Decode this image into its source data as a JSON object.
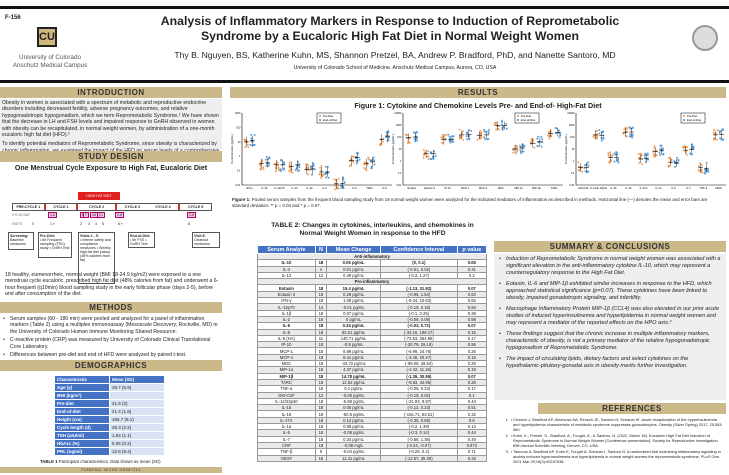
{
  "header": {
    "poster_id": "F-156",
    "title_line1": "Analysis of Inflammatory Markers in Response to Induction of Reprometabolic",
    "title_line2": "Syndrome by a Eucaloric High Fat Diet in Normal Weight Women",
    "authors": "Thy B. Nguyen, BS, Katherine Kuhn, MS, Shannon Pretzel, BA, Andrew P. Bradford, PhD, and Nanette Santoro, MD",
    "affiliation": "University of Colorado School of Medicine, Anschutz Medical Campus, Aurora, CO, USA",
    "logo_line1": "University of Colorado",
    "logo_line2": "Anschutz Medical Campus"
  },
  "intro": {
    "heading": "INTRODUCTION",
    "p1": "Obesity in women is associated with a spectrum of metabolic and reproductive endocrine disorders including decreased fertility, adverse pregnancy outcomes, and relative hypogonadotropic hypogonadism, which we term Reprometabolic Syndrome.¹ We have shown that the decrease in LH and FSH levels and impaired response to GnRH observed in women with obesity can be recapitulated, in normal weight women, by administration of a one-month eucaloric high fat diet (HFD).²",
    "p2": "To identify potential mediators of Reprometabolic Syndrome, since obesity is characterized by chronic inflammation, we examined the impact of the HFD on serum levels of a comprehensive panel of inflammatory markers and adipocytokines.³"
  },
  "design": {
    "heading": "STUDY DESIGN",
    "title": "One Menstrual Cycle Exposure to High Fat, Eucaloric Diet",
    "hfd_label": "HIGH FAT DIET",
    "cycles": [
      "PRE-CYCLE 1",
      "CYCLE 1",
      "CYCLE 2",
      "CYCLE 3",
      "CYCLE 4",
      "CYCLE 5"
    ],
    "cycle_day_label": "CYCLE DAY",
    "visits_label": "VISITS",
    "days": [
      "2-6",
      "8",
      "7",
      "16",
      "21",
      "2-6",
      "2-6"
    ],
    "visits": [
      "0",
      "1 †",
      "2",
      "3",
      "4",
      "5",
      "6 †",
      "8"
    ],
    "boxes": [
      {
        "title": "Screening:",
        "body": "Baseline measures"
      },
      {
        "title": "Pre-Diet:",
        "body": "• 6h Frequent sampling (FSS) study • GnRH Test"
      },
      {
        "title": "Visits 2 - 5:",
        "body": "• Interim safety and compliance measures • Weekly high-fat diet pickup (48% calories from fat)"
      },
      {
        "title": "End-of-Diet:",
        "body": "• 6h FSS • GnRH Test"
      },
      {
        "title": "Visit 8:",
        "body": "Cleanout measures"
      }
    ],
    "text": "18 healthy, eumenorrheic, normal weight (BMI 18-24.9 kg/m2) were exposed to a one menstrual cycle eucaloric, prescribed high fat diet (48% calories from fat) and underwent a 6-hour frequent (q10min) blood sampling study in the early follicular phase (days 2-5), before and after consumption of the diet."
  },
  "methods": {
    "heading": "METHODS",
    "bullets": [
      "Serum samples (60 - 180 min) were pooled and analyzed for a panel of inflammation markers (Table 2) using a multiplex immunoassay (Mesoscale Discovery, Rockville, MD) in the University of Colorado Human Immune Monitoring Shared Resource.",
      "C-reactive protein (CRP) was measured by University of Colorado Clinical Translational Core Laboratory.",
      "Differences between pre-diet and end of HFD were analyzed by paired t-test."
    ]
  },
  "demographics": {
    "heading": "DEMOGRAPHICS",
    "col1": "Characteristic",
    "col2": "Mean (SD)",
    "rows": [
      [
        "Age (y)",
        "29.7 (5.9)"
      ],
      [
        "BMI (kg/m²)",
        ""
      ],
      [
        "Pre-diet",
        "21.6 (2)"
      ],
      [
        "End-of-diet",
        "21.4 (1.8)"
      ],
      [
        "Height (cm)",
        "166.7 (9.1)"
      ],
      [
        "Cycle length (d)",
        "28.3 (2.2)"
      ],
      [
        "TSH (uIU/ml)",
        "1.84 (1.1)"
      ],
      [
        "HbA1c (%)",
        "5.05 (0.2)"
      ],
      [
        "PRL (ng/ml)",
        "12.6 (6.4)"
      ]
    ],
    "caption_bold": "TABLE 1",
    "caption": "Participant characteristics.  Data shown as mean (SD)",
    "funding": "FUNDING: NICHD HD087314"
  },
  "results": {
    "heading": "RESULTS",
    "figure_title": "Figure 1: Cytokine and Chemokine Levels Pre- and End-of- High-Fat Diet",
    "legend": [
      "Pre-Diet",
      "End-of-Diet"
    ],
    "ylabel": "Concentration (pg/mL)",
    "caption_bold": "Figure 1:",
    "caption": "Pooled serum samples from the frequent blood sampling study from 18 normal weight women were analyzed for the indicated mediators of inflammation as described in methods. Horizontal line (—) denotes the mean and error bars are standard deviation. ** p = 0.04 and * p = 0.07."
  },
  "chart_data": [
    {
      "type": "scatter",
      "ylabel": "Concentration (pg/mL)",
      "yscale": "log",
      "ylim": [
        0.01,
        1000
      ],
      "categories": [
        "IFN-γ",
        "IL-10",
        "IL-12p70",
        "IL-13",
        "IL-1β",
        "IL-2",
        "IL-4",
        "IL-6",
        "TNFα",
        "IL-8"
      ],
      "series": [
        {
          "name": "Pre-Diet",
          "values": [
            10,
            0.3,
            0.25,
            0.2,
            0.12,
            0.08,
            0.012,
            0.5,
            0.3,
            15
          ]
        },
        {
          "name": "End-of-Diet",
          "values": [
            12,
            0.35,
            0.25,
            0.25,
            0.13,
            0.08,
            0.013,
            0.8,
            0.4,
            25
          ]
        }
      ]
    },
    {
      "type": "scatter",
      "ylabel": "Concentration (pg/mL)",
      "yscale": "log",
      "ylim": [
        0.01,
        10000
      ],
      "categories": [
        "Eotaxin",
        "Eotaxin-3",
        "IP-10",
        "MCP-1",
        "MCP-4",
        "MDC",
        "MIP-1α",
        "MIP-1β",
        "TARC"
      ],
      "series": [
        {
          "name": "Pre-Diet",
          "values": [
            90,
            4,
            60,
            150,
            140,
            900,
            10,
            30,
            200
          ]
        },
        {
          "name": "End-of-Diet",
          "values": [
            100,
            4,
            60,
            160,
            150,
            870,
            12,
            40,
            230
          ]
        }
      ]
    },
    {
      "type": "scatter",
      "ylabel": "Concentration (pg/mL)",
      "yscale": "log",
      "ylim": [
        0.01,
        10000
      ],
      "categories": [
        "GM-CSF",
        "IL-12/IL-23p40",
        "IL-15",
        "IL-16",
        "IL-17A",
        "IL-1α",
        "IL-5",
        "IL-7",
        "TNF-β",
        "VEGF"
      ],
      "series": [
        {
          "name": "Pre-Diet",
          "values": [
            0.3,
            150,
            2,
            250,
            1.5,
            6,
            0.8,
            8,
            0.3,
            150
          ]
        },
        {
          "name": "End-of-Diet",
          "values": [
            0.3,
            140,
            2,
            260,
            1.7,
            7,
            0.7,
            9,
            0.25,
            160
          ]
        }
      ]
    }
  ],
  "table2": {
    "title": "TABLE 2: Changes in cytokines, interleukins, and chemokines in Normal Weight Women in response to the HFD",
    "headers": [
      "Serum Analyte",
      "N",
      "Mean Change",
      "Confidence Interval",
      "p value"
    ],
    "rows": [
      {
        "sec": "Anti-inflammatory"
      },
      {
        "c": [
          "IL-10",
          "18",
          "0.05 pg/mL",
          "(0, 0.1)",
          "0.05"
        ],
        "b": 1
      },
      {
        "c": [
          "IL-4",
          "4",
          "0.01 pg/mL",
          "(-0.01, 0.02)",
          "0.31"
        ]
      },
      {
        "c": [
          "IL-13",
          "12",
          "0.49 pg/mL",
          "(-0.3, 1.27)",
          "0.2"
        ]
      },
      {
        "sec": "Pro-inflammatory"
      },
      {
        "c": [
          "Eotaxin",
          "18",
          "15.4 pg/mL",
          "(-1.13, 31.92)",
          "0.07"
        ],
        "b": 1
      },
      {
        "c": [
          "Eotaxin 3",
          "18",
          "0.29 pg/mL",
          "(-0.95, 1.54)",
          "0.63"
        ]
      },
      {
        "c": [
          "IFN-γ",
          "18",
          "1.08 pg/mL",
          "(-8.34, 10.62)",
          "0.82"
        ]
      },
      {
        "c": [
          "IL-12p70",
          "14",
          "-0.01 pg/mL",
          "(-0.19, 0.18)",
          "0.94"
        ]
      },
      {
        "c": [
          "IL-1β",
          "18",
          "0.07 pg/mL",
          "(-0.1, 0.25)",
          "0.39"
        ]
      },
      {
        "c": [
          "IL-2",
          "16",
          "0 pg/mL",
          "(-0.09, 0.09)",
          "0.98"
        ]
      },
      {
        "c": [
          "IL-6",
          "18",
          "0.34 pg/mL",
          "(-0.03, 0.72)",
          "0.07"
        ],
        "b": 1
      },
      {
        "c": [
          "IL-8",
          "18",
          "82.51 pg/mL",
          "(-33.16, 198.17)",
          "0.15"
        ]
      },
      {
        "c": [
          "IL-8 (HA)",
          "11",
          "140.71 pg/mL",
          "(-73.53, 354.95)",
          "0.17"
        ]
      },
      {
        "c": [
          "IP-10",
          "18",
          "-0.8 pg/mL",
          "(-30.79, 29.19)",
          "0.96"
        ]
      },
      {
        "c": [
          "MCP-1",
          "18",
          "8.89 pg/mL",
          "(-6.99, 24.76)",
          "0.25"
        ]
      },
      {
        "c": [
          "MCP-4",
          "18",
          "8.41 pg/mL",
          "(-3.46, 20.27)",
          "0.15"
        ]
      },
      {
        "c": [
          "MDC",
          "18",
          "-34.72 pg/mL",
          "(-98.08, 28.64)",
          "0.26"
        ]
      },
      {
        "c": [
          "MIP-1α",
          "16",
          "4.37 pg/mL",
          "(-2.42, 11.16)",
          "0.19"
        ]
      },
      {
        "c": [
          "MIP-1β",
          "18",
          "14.78 pg/mL",
          "(-1.39, 30.95)",
          "0.07"
        ],
        "b": 1
      },
      {
        "c": [
          "TARC",
          "18",
          "12.52 pg/mL",
          "(-9.83, 34.96)",
          "0.26"
        ]
      },
      {
        "c": [
          "TNF-α",
          "18",
          "0.1 pg/mL",
          "(-0.05, 0.24)",
          "0.17"
        ]
      },
      {
        "c": [
          "GM-CSF",
          "12",
          "-0.08 pg/mL",
          "(-0.19, 0.02)",
          "0.1"
        ]
      },
      {
        "c": [
          "IL-12/23p40",
          "18",
          "-5.98 pg/mL",
          "(-21.93, 9.97)",
          "0.44"
        ]
      },
      {
        "c": [
          "IL-15",
          "18",
          "0.06 pg/mL",
          "(-0.12, 0.23)",
          "0.51"
        ]
      },
      {
        "c": [
          "IL-16",
          "18",
          "-50.6 pg/mL",
          "(-154.71, 53.51)",
          "0.32"
        ]
      },
      {
        "c": [
          "IL-17A",
          "18",
          "0.12 pg/mL",
          "(-0.35, 0.59)",
          "0.6"
        ]
      },
      {
        "c": [
          "IL-1α",
          "18",
          "0.59 pg/mL",
          "(-0.2, 1.39)",
          "0.13"
        ]
      },
      {
        "c": [
          "IL-5",
          "18",
          "-0.08 pg/mL",
          "(-0.3, 0.14)",
          "0.44"
        ]
      },
      {
        "c": [
          "IL-7",
          "18",
          "0.34 pg/mL",
          "(-0.68, 1.36)",
          "0.49"
        ]
      },
      {
        "c": [
          "CRP",
          "18",
          "-0.08 mg/L",
          "(-0.24, -0.07)",
          "0.872"
        ]
      },
      {
        "c": [
          "TNF-β",
          "9",
          "-0.04 pg/mL",
          "(-0.28, 0.2)",
          "0.71"
        ]
      },
      {
        "c": [
          "VEGF",
          "18",
          "11.41 pg/mL",
          "(-12.57, 35.39)",
          "0.33"
        ]
      }
    ]
  },
  "summary": {
    "heading": "SUMMARY & CONCLUSIONS",
    "bullets": [
      "Induction of Reprometabolic Syndrome in normal weight women was associated with a significant elevation in the anti-inflammatory cytokine IL-10, which may represent a counterregulatory response to the High Fat Diet.",
      "Eotaxin, IL-6 and MIP-1β exhibited similar increases in response to the HFD, which approached statistical significance (p=0.07). These cytokines have been linked to obesity, impaired gonadotropin signaling, and infertility.",
      "Macrophage Inflammatory Protein MIP-1β (CCL4) was also elevated in our prior acute studies of induced hyperinsulinemia and hyperlipidemia in normal weight women and may represent a mediator of the reported effects on the HPO axis.³",
      "These findings suggest that the chronic increase in multiple inflammatory markers, characteristic of obesity, is not a primary mediator of the relative hypogonadotropic hypogonadism of Reprometabolic Syndrome.",
      "The impact of circulating lipids, dietary factors and select cytokines on the hypothalamic-pituitary-gonadal axis in obesity merits further investigation."
    ]
  },
  "references": {
    "heading": "REFERENCES",
    "items": [
      "Chosich J, Bradford AP, Allshouse AA, Reusch JE, Santoro N, Schauer IE. Acute recapitulation of the hyperinsulinemia and hyperlipidemia characteristic of metabolic syndrome suppresses gonadotropins. Obesity (Silver Spring) 2017; 25:553-560.",
      "Kuhn, K., Pretzel, S., Bradford, A., Fought, A., & Santoro, N. (2022, March 18). Eucaloric High Fat Diet Induction of Reprometabolic Syndrome in Normal Weight Women [Conference presentation]. Society for Reproductive Investigation 69th Annual Scientific Meeting, Denver, CO, USA.",
      "Tannous A, Bradford AP, Kuhn K, Fought A, Schauer I, Santoro N. A randomized trial examining inflammatory signaling in acutely induced hyperinsulinemia and hyperlipidemia in normal weight women-the reprometabolic syndrome. PLoS One. 2021 Mar 29;16(3):e0247638."
    ]
  },
  "colors": {
    "pre": "#f08c3a",
    "end": "#3a8ad0",
    "bar": "#cbb98a",
    "table_blue": "#4472c4",
    "hfd_red": "#e02020"
  }
}
